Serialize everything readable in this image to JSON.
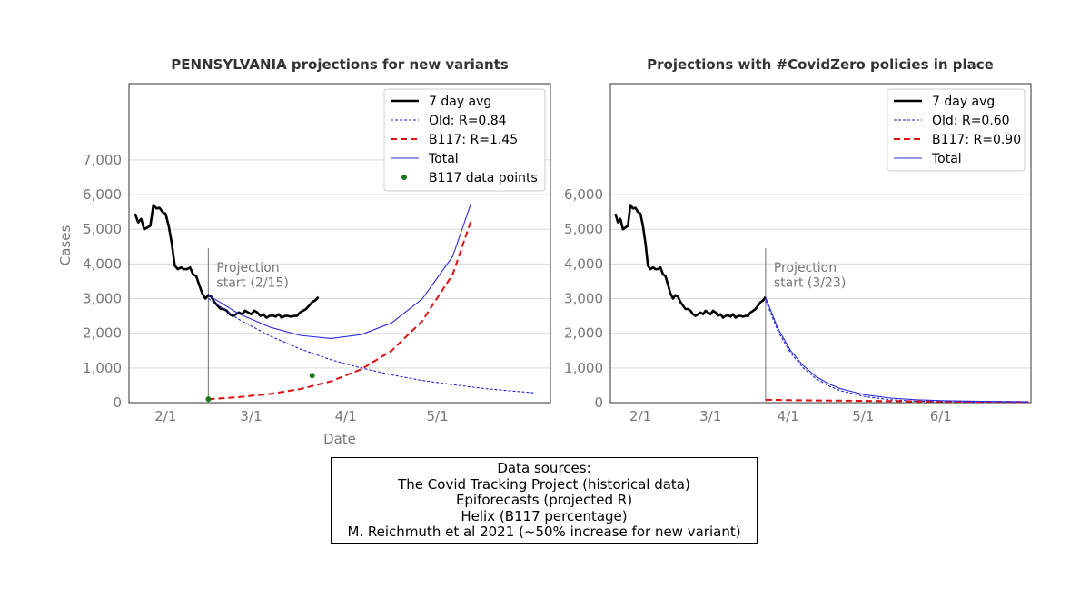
{
  "colors": {
    "avg": "#000000",
    "old": "#1f1fd6",
    "b117": "#e01010",
    "total": "#2b2bd8",
    "points": "#1a7a1a",
    "grid": "#d9d9d9",
    "projection_line": "#888888"
  },
  "sources": {
    "lines": [
      "Data sources:",
      "The Covid Tracking Project (historical data)",
      "Epiforecasts (projected R)",
      "Helix (B117 percentage)",
      "M. Reichmuth et al 2021 (~50% increase for new variant)"
    ]
  },
  "chart_data": [
    {
      "type": "line",
      "title": "PENNSYLVANIA projections for new variants",
      "xlabel": "Date",
      "ylabel": "Cases",
      "x_ticks": [
        "2/1",
        "3/1",
        "4/1",
        "5/1"
      ],
      "y_ticks": [
        "0",
        "1,000",
        "2,000",
        "3,000",
        "4,000",
        "5,000",
        "6,000",
        "7,000"
      ],
      "ylim": [
        0,
        9200
      ],
      "xlim": [
        "2021-01-20",
        "2021-06-07"
      ],
      "grid": "horizontal",
      "legend_position": "top-right",
      "projection_annotation": "Projection\nstart (2/15)",
      "projection_start": "2021-02-15",
      "series": [
        {
          "name": "7 day avg",
          "style": "solid-thick",
          "x": [
            "2021-01-22",
            "2021-01-23",
            "2021-01-24",
            "2021-01-25",
            "2021-01-26",
            "2021-01-27",
            "2021-01-28",
            "2021-01-29",
            "2021-01-30",
            "2021-01-31",
            "2021-02-01",
            "2021-02-02",
            "2021-02-03",
            "2021-02-04",
            "2021-02-05",
            "2021-02-06",
            "2021-02-07",
            "2021-02-08",
            "2021-02-09",
            "2021-02-10",
            "2021-02-11",
            "2021-02-12",
            "2021-02-13",
            "2021-02-14",
            "2021-02-15",
            "2021-02-16",
            "2021-02-17",
            "2021-02-18",
            "2021-02-19",
            "2021-02-20",
            "2021-02-21",
            "2021-02-22",
            "2021-02-23",
            "2021-02-24",
            "2021-02-25",
            "2021-02-26",
            "2021-02-27",
            "2021-02-28",
            "2021-03-01",
            "2021-03-02",
            "2021-03-03",
            "2021-03-04",
            "2021-03-05",
            "2021-03-06",
            "2021-03-07",
            "2021-03-08",
            "2021-03-09",
            "2021-03-10",
            "2021-03-11",
            "2021-03-12",
            "2021-03-13",
            "2021-03-14",
            "2021-03-15",
            "2021-03-16",
            "2021-03-17",
            "2021-03-18",
            "2021-03-19",
            "2021-03-20",
            "2021-03-21",
            "2021-03-22",
            "2021-03-23"
          ],
          "y": [
            5450,
            5200,
            5300,
            5000,
            5050,
            5100,
            5700,
            5600,
            5620,
            5500,
            5450,
            5100,
            4600,
            3950,
            3850,
            3900,
            3850,
            3850,
            3900,
            3700,
            3650,
            3400,
            3150,
            3000,
            3100,
            3050,
            2900,
            2800,
            2700,
            2700,
            2650,
            2550,
            2500,
            2550,
            2600,
            2550,
            2650,
            2600,
            2550,
            2650,
            2600,
            2500,
            2550,
            2450,
            2500,
            2520,
            2480,
            2550,
            2450,
            2500,
            2500,
            2480,
            2500,
            2500,
            2600,
            2650,
            2700,
            2800,
            2900,
            2950,
            3050
          ]
        },
        {
          "name": "Old: R=0.84",
          "style": "dotted",
          "x": [
            "2021-02-15",
            "2021-02-25",
            "2021-03-07",
            "2021-03-17",
            "2021-03-27",
            "2021-04-06",
            "2021-04-16",
            "2021-04-26",
            "2021-05-06",
            "2021-05-16",
            "2021-05-26",
            "2021-06-02"
          ],
          "y": [
            3000,
            2400,
            1930,
            1550,
            1240,
            1000,
            800,
            640,
            520,
            410,
            330,
            280
          ]
        },
        {
          "name": "B117: R=1.45",
          "style": "dashed",
          "x": [
            "2021-02-15",
            "2021-02-25",
            "2021-03-07",
            "2021-03-17",
            "2021-03-27",
            "2021-04-06",
            "2021-04-16",
            "2021-04-26",
            "2021-05-06",
            "2021-05-12"
          ],
          "y": [
            100,
            160,
            250,
            390,
            610,
            960,
            1500,
            2350,
            3700,
            5250
          ]
        },
        {
          "name": "Total",
          "style": "solid-thin",
          "x": [
            "2021-02-15",
            "2021-02-25",
            "2021-03-07",
            "2021-03-17",
            "2021-03-27",
            "2021-04-06",
            "2021-04-16",
            "2021-04-26",
            "2021-05-06",
            "2021-05-12"
          ],
          "y": [
            3100,
            2560,
            2180,
            1940,
            1850,
            1960,
            2300,
            2990,
            4220,
            5750
          ]
        },
        {
          "name": "B117 data points",
          "style": "points",
          "x": [
            "2021-02-15",
            "2021-03-21"
          ],
          "y": [
            100,
            780
          ]
        }
      ]
    },
    {
      "type": "line",
      "title": "Projections with #CovidZero policies in place",
      "xlabel": "",
      "ylabel": "",
      "x_ticks": [
        "2/1",
        "3/1",
        "4/1",
        "5/1",
        "6/1"
      ],
      "y_ticks": [
        "0",
        "1,000",
        "2,000",
        "3,000",
        "4,000",
        "5,000",
        "6,000"
      ],
      "ylim": [
        0,
        9200
      ],
      "xlim": [
        "2021-01-20",
        "2021-07-07"
      ],
      "grid": "horizontal",
      "legend_position": "top-right",
      "projection_annotation": "Projection\nstart (3/23)",
      "projection_start": "2021-03-23",
      "series": [
        {
          "name": "7 day avg",
          "style": "solid-thick",
          "x": [
            "2021-01-22",
            "2021-01-23",
            "2021-01-24",
            "2021-01-25",
            "2021-01-26",
            "2021-01-27",
            "2021-01-28",
            "2021-01-29",
            "2021-01-30",
            "2021-01-31",
            "2021-02-01",
            "2021-02-02",
            "2021-02-03",
            "2021-02-04",
            "2021-02-05",
            "2021-02-06",
            "2021-02-07",
            "2021-02-08",
            "2021-02-09",
            "2021-02-10",
            "2021-02-11",
            "2021-02-12",
            "2021-02-13",
            "2021-02-14",
            "2021-02-15",
            "2021-02-16",
            "2021-02-17",
            "2021-02-18",
            "2021-02-19",
            "2021-02-20",
            "2021-02-21",
            "2021-02-22",
            "2021-02-23",
            "2021-02-24",
            "2021-02-25",
            "2021-02-26",
            "2021-02-27",
            "2021-02-28",
            "2021-03-01",
            "2021-03-02",
            "2021-03-03",
            "2021-03-04",
            "2021-03-05",
            "2021-03-06",
            "2021-03-07",
            "2021-03-08",
            "2021-03-09",
            "2021-03-10",
            "2021-03-11",
            "2021-03-12",
            "2021-03-13",
            "2021-03-14",
            "2021-03-15",
            "2021-03-16",
            "2021-03-17",
            "2021-03-18",
            "2021-03-19",
            "2021-03-20",
            "2021-03-21",
            "2021-03-22",
            "2021-03-23"
          ],
          "y": [
            5450,
            5200,
            5300,
            5000,
            5050,
            5100,
            5700,
            5600,
            5620,
            5500,
            5450,
            5100,
            4600,
            3950,
            3850,
            3900,
            3850,
            3850,
            3900,
            3700,
            3650,
            3400,
            3150,
            3000,
            3100,
            3050,
            2900,
            2800,
            2700,
            2700,
            2650,
            2550,
            2500,
            2550,
            2600,
            2550,
            2650,
            2600,
            2550,
            2650,
            2600,
            2500,
            2550,
            2450,
            2500,
            2520,
            2480,
            2550,
            2450,
            2500,
            2500,
            2480,
            2500,
            2500,
            2600,
            2650,
            2700,
            2800,
            2900,
            2950,
            3050
          ]
        },
        {
          "name": "Old: R=0.60",
          "style": "dotted",
          "x": [
            "2021-03-23",
            "2021-03-28",
            "2021-04-02",
            "2021-04-07",
            "2021-04-12",
            "2021-04-17",
            "2021-04-22",
            "2021-05-02",
            "2021-05-12",
            "2021-05-22",
            "2021-06-01",
            "2021-06-11",
            "2021-06-21",
            "2021-07-01",
            "2021-07-06"
          ],
          "y": [
            2950,
            2050,
            1430,
            1000,
            700,
            490,
            340,
            170,
            85,
            45,
            25,
            15,
            10,
            6,
            5
          ]
        },
        {
          "name": "B117: R=0.90",
          "style": "dashed",
          "x": [
            "2021-03-23",
            "2021-04-02",
            "2021-04-12",
            "2021-04-22",
            "2021-05-02",
            "2021-05-12",
            "2021-05-22",
            "2021-06-01",
            "2021-06-11",
            "2021-06-21",
            "2021-07-01",
            "2021-07-06"
          ],
          "y": [
            80,
            72,
            64,
            57,
            50,
            44,
            38,
            33,
            29,
            25,
            22,
            20
          ]
        },
        {
          "name": "Total",
          "style": "solid-thin",
          "x": [
            "2021-03-23",
            "2021-03-28",
            "2021-04-02",
            "2021-04-07",
            "2021-04-12",
            "2021-04-17",
            "2021-04-22",
            "2021-05-02",
            "2021-05-12",
            "2021-05-22",
            "2021-06-01",
            "2021-06-11",
            "2021-06-21",
            "2021-07-01",
            "2021-07-06"
          ],
          "y": [
            3030,
            2130,
            1500,
            1070,
            760,
            550,
            400,
            220,
            130,
            85,
            58,
            44,
            35,
            28,
            25
          ]
        }
      ]
    }
  ]
}
